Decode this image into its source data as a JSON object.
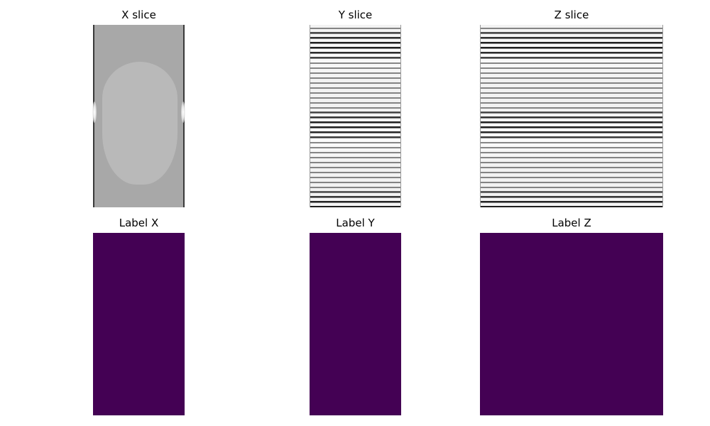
{
  "panels": {
    "x_slice": {
      "title": "X slice"
    },
    "y_slice": {
      "title": "Y slice"
    },
    "z_slice": {
      "title": "Z slice"
    },
    "label_x": {
      "title": "Label X"
    },
    "label_y": {
      "title": "Label Y"
    },
    "label_z": {
      "title": "Label Z"
    }
  },
  "colors": {
    "label_fill": "#440154",
    "slice_grey": "#a8a8a8",
    "blob_grey": "#b9b9b9"
  }
}
